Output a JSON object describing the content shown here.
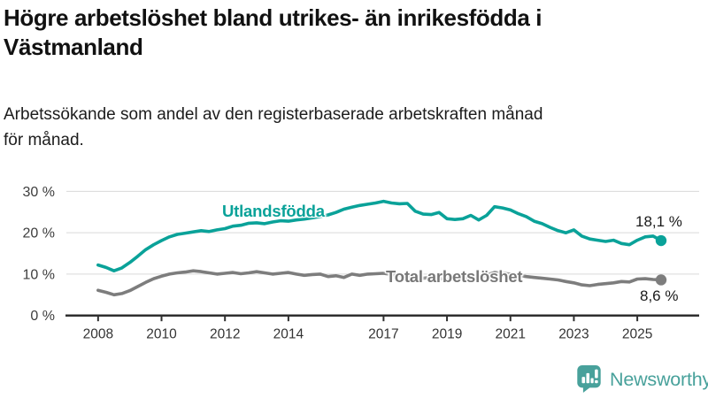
{
  "header": {
    "title": "Högre arbetslöshet bland utrikes- än inrikesfödda i Västmanland",
    "title_lines": [
      "Högre arbetslöshet bland utrikes- än inrikesfödda i",
      "Västmanland"
    ],
    "subtitle": "Arbetssökande som andel av den registerbaserade arbetskraften månad för månad.",
    "subtitle_lines": [
      "Arbetssökande som andel av den registerbaserade arbetskraften månad",
      "för månad."
    ]
  },
  "chart_data": {
    "type": "line",
    "x_unit": "decimal_year",
    "xlim": [
      2007.0,
      2026.95
    ],
    "ylim": [
      0,
      32
    ],
    "grid": "horizontal",
    "xticks": [
      2008,
      2010,
      2012,
      2014,
      2017,
      2019,
      2021,
      2023,
      2025
    ],
    "xtick_labels": [
      "2008",
      "2010",
      "2012",
      "2014",
      "2017",
      "2019",
      "2021",
      "2023",
      "2025"
    ],
    "yticks": [
      0,
      10,
      20,
      30
    ],
    "ytick_labels": [
      "0 %",
      "10 %",
      "20 %",
      "30 %"
    ],
    "series": [
      {
        "id": "utlandsfodda-line",
        "name": "Utlandsfödda",
        "color": "#0aa299",
        "end_label": "18,1 %",
        "end_value": 18.1,
        "x_start": 2008.0,
        "x_step": 0.25,
        "values": [
          12.2,
          11.6,
          10.8,
          11.5,
          12.8,
          14.3,
          15.9,
          17.1,
          18.1,
          19.0,
          19.6,
          19.9,
          20.2,
          20.5,
          20.3,
          20.7,
          21.0,
          21.6,
          21.8,
          22.3,
          22.4,
          22.2,
          22.6,
          22.9,
          22.8,
          23.1,
          23.3,
          23.6,
          23.9,
          24.3,
          24.9,
          25.7,
          26.2,
          26.6,
          26.9,
          27.2,
          27.6,
          27.2,
          27.0,
          27.1,
          25.2,
          24.5,
          24.4,
          24.9,
          23.4,
          23.2,
          23.4,
          24.2,
          23.1,
          24.2,
          26.3,
          26.0,
          25.5,
          24.6,
          23.9,
          22.8,
          22.2,
          21.3,
          20.5,
          20.0,
          20.7,
          19.2,
          18.5,
          18.2,
          17.9,
          18.2,
          17.4,
          17.1,
          18.2,
          19.0,
          19.2,
          18.1
        ]
      },
      {
        "id": "total-arbetsloshet-line",
        "name": "Total arbetslöshet",
        "color": "#7d7d7d",
        "end_label": "8,6 %",
        "end_value": 8.6,
        "x_start": 2008.0,
        "x_step": 0.25,
        "values": [
          6.1,
          5.6,
          5.0,
          5.3,
          6.0,
          7.0,
          8.0,
          8.9,
          9.5,
          10.0,
          10.3,
          10.5,
          10.8,
          10.6,
          10.3,
          10.0,
          10.2,
          10.4,
          10.1,
          10.3,
          10.6,
          10.3,
          10.0,
          10.2,
          10.4,
          10.0,
          9.7,
          9.9,
          10.0,
          9.4,
          9.6,
          9.2,
          10.0,
          9.7,
          10.0,
          10.1,
          10.2,
          9.9,
          9.7,
          9.5,
          9.3,
          9.0,
          9.2,
          8.9,
          8.8,
          8.9,
          9.1,
          8.8,
          8.9,
          9.8,
          10.4,
          10.2,
          10.0,
          9.7,
          9.4,
          9.2,
          9.0,
          8.8,
          8.6,
          8.2,
          7.9,
          7.4,
          7.2,
          7.5,
          7.7,
          7.9,
          8.2,
          8.1,
          8.8,
          8.9,
          8.7,
          8.6
        ]
      }
    ]
  },
  "footer": {
    "brand": "Newsworthy",
    "logo_icon": "bar-chart-speech-bubble-icon",
    "brand_color": "#48a19b"
  }
}
